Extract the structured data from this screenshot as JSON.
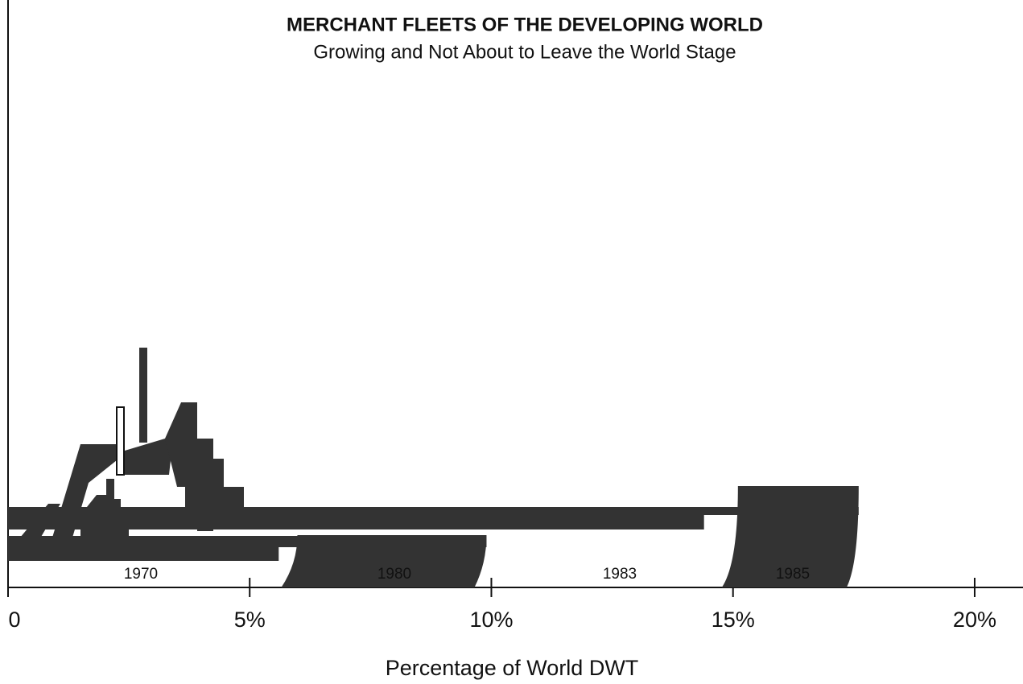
{
  "chart_data": {
    "type": "bar",
    "orientation": "horizontal",
    "title": "MERCHANT FLEETS OF THE DEVELOPING WORLD",
    "subtitle": "Growing and Not About to Leave the World Stage",
    "x_label": "Percentage of World DWT",
    "categories": [
      "1970",
      "1980",
      "1983",
      "1985"
    ],
    "values": [
      5.6,
      9.9,
      14.4,
      17.6
    ],
    "color": "#333333",
    "xlim": [
      0,
      21
    ],
    "xticks": [
      0,
      {
        "value": 5,
        "label": "5%"
      },
      {
        "value": 10,
        "label": "10%"
      },
      {
        "value": 15,
        "label": "15%"
      },
      {
        "value": 20,
        "label": "20%"
      }
    ]
  }
}
